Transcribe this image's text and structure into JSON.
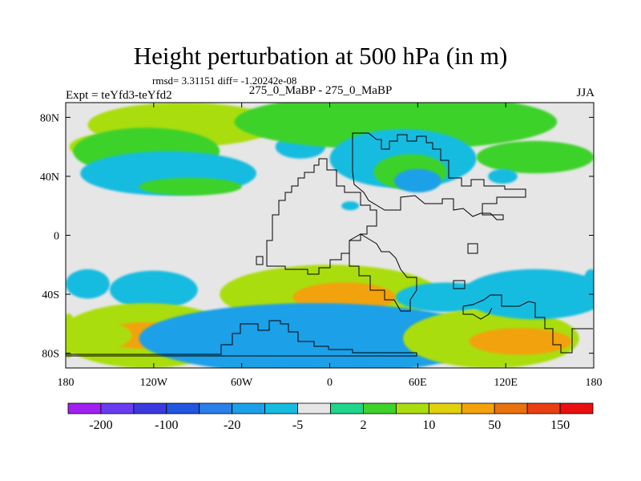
{
  "chart_data": {
    "type": "heatmap",
    "title": "Height perturbation at 500 hPa (in m)",
    "stats": "rmsd= 3.31151 diff= -1.20242e-08",
    "experiment": "Expt = teYfd3-teYfd2",
    "subtitle": "275_0_MaBP - 275_0_MaBP",
    "season": "JJA",
    "x_ticks": [
      {
        "value": -180,
        "label": "180"
      },
      {
        "value": -120,
        "label": "120W"
      },
      {
        "value": -60,
        "label": "60W"
      },
      {
        "value": 0,
        "label": "0"
      },
      {
        "value": 60,
        "label": "60E"
      },
      {
        "value": 120,
        "label": "120E"
      },
      {
        "value": 180,
        "label": "180"
      }
    ],
    "y_ticks": [
      {
        "value": 80,
        "label": "80N"
      },
      {
        "value": 40,
        "label": "40N"
      },
      {
        "value": 0,
        "label": "0"
      },
      {
        "value": -40,
        "label": "40S"
      },
      {
        "value": -80,
        "label": "80S"
      }
    ],
    "xlim": [
      -180,
      180
    ],
    "ylim": [
      -90,
      90
    ],
    "colorbar": {
      "colors": [
        "#a020f0",
        "#6a3df0",
        "#3a3adf",
        "#2255e0",
        "#2a7fe8",
        "#1ea0e8",
        "#16bce0",
        "#e6e6e6",
        "#1fd68a",
        "#3ed22a",
        "#aadd10",
        "#e0d010",
        "#f2a20a",
        "#e8720e",
        "#e84012",
        "#e81010"
      ],
      "labels": [
        {
          "index": 1,
          "label": "-200"
        },
        {
          "index": 3,
          "label": "-100"
        },
        {
          "index": 5,
          "label": "-20"
        },
        {
          "index": 7,
          "label": "-5"
        },
        {
          "index": 9,
          "label": "2"
        },
        {
          "index": 11,
          "label": "10"
        },
        {
          "index": 13,
          "label": "50"
        },
        {
          "index": 15,
          "label": "150"
        }
      ]
    },
    "anomalies": [
      {
        "lon": -100,
        "lat": 75,
        "w": 130,
        "h": 30,
        "value": 6
      },
      {
        "lon": -150,
        "lat": 60,
        "w": 55,
        "h": 18,
        "value": 6
      },
      {
        "lon": -125,
        "lat": 57,
        "w": 100,
        "h": 32,
        "value": 3
      },
      {
        "lon": -110,
        "lat": 42,
        "w": 120,
        "h": 30,
        "value": -6
      },
      {
        "lon": -95,
        "lat": 33,
        "w": 70,
        "h": 12,
        "value": 3
      },
      {
        "lon": -20,
        "lat": 60,
        "w": 34,
        "h": 16,
        "value": -6
      },
      {
        "lon": 45,
        "lat": 77,
        "w": 220,
        "h": 38,
        "value": 4
      },
      {
        "lon": 50,
        "lat": 52,
        "w": 100,
        "h": 40,
        "value": -6
      },
      {
        "lon": 55,
        "lat": 43,
        "w": 50,
        "h": 24,
        "value": 4
      },
      {
        "lon": 60,
        "lat": 37,
        "w": 32,
        "h": 16,
        "value": -12
      },
      {
        "lon": 140,
        "lat": 53,
        "w": 80,
        "h": 22,
        "value": 4
      },
      {
        "lon": 118,
        "lat": 40,
        "w": 20,
        "h": 10,
        "value": -6
      },
      {
        "lon": 14,
        "lat": 20,
        "w": 12,
        "h": 6,
        "value": -6
      },
      {
        "lon": 0,
        "lat": -40,
        "w": 150,
        "h": 40,
        "value": 6
      },
      {
        "lon": 10,
        "lat": -42,
        "w": 70,
        "h": 20,
        "value": 20
      },
      {
        "lon": -165,
        "lat": -33,
        "w": 30,
        "h": 20,
        "value": -6
      },
      {
        "lon": -120,
        "lat": -37,
        "w": 60,
        "h": 26,
        "value": -6
      },
      {
        "lon": -125,
        "lat": -68,
        "w": 120,
        "h": 44,
        "value": 6
      },
      {
        "lon": -125,
        "lat": -68,
        "w": 60,
        "h": 18,
        "value": 20
      },
      {
        "lon": -150,
        "lat": -68,
        "w": 30,
        "h": 16,
        "value": 5
      },
      {
        "lon": -10,
        "lat": -70,
        "w": 240,
        "h": 48,
        "value": -12
      },
      {
        "lon": -20,
        "lat": -72,
        "w": 150,
        "h": 30,
        "value": -20
      },
      {
        "lon": 80,
        "lat": -42,
        "w": 70,
        "h": 20,
        "value": -6
      },
      {
        "lon": 110,
        "lat": -70,
        "w": 120,
        "h": 40,
        "value": 6
      },
      {
        "lon": 130,
        "lat": -72,
        "w": 70,
        "h": 18,
        "value": 20
      },
      {
        "lon": 140,
        "lat": -40,
        "w": 100,
        "h": 34,
        "value": -6
      },
      {
        "lon": 178,
        "lat": -32,
        "w": 10,
        "h": 18,
        "value": -6
      },
      {
        "lon": -178,
        "lat": -68,
        "w": 10,
        "h": 30,
        "value": 6
      }
    ],
    "thresholds": [
      -200,
      -150,
      -100,
      -50,
      -20,
      -10,
      -5,
      -2,
      2,
      5,
      10,
      20,
      50,
      100,
      150
    ]
  }
}
